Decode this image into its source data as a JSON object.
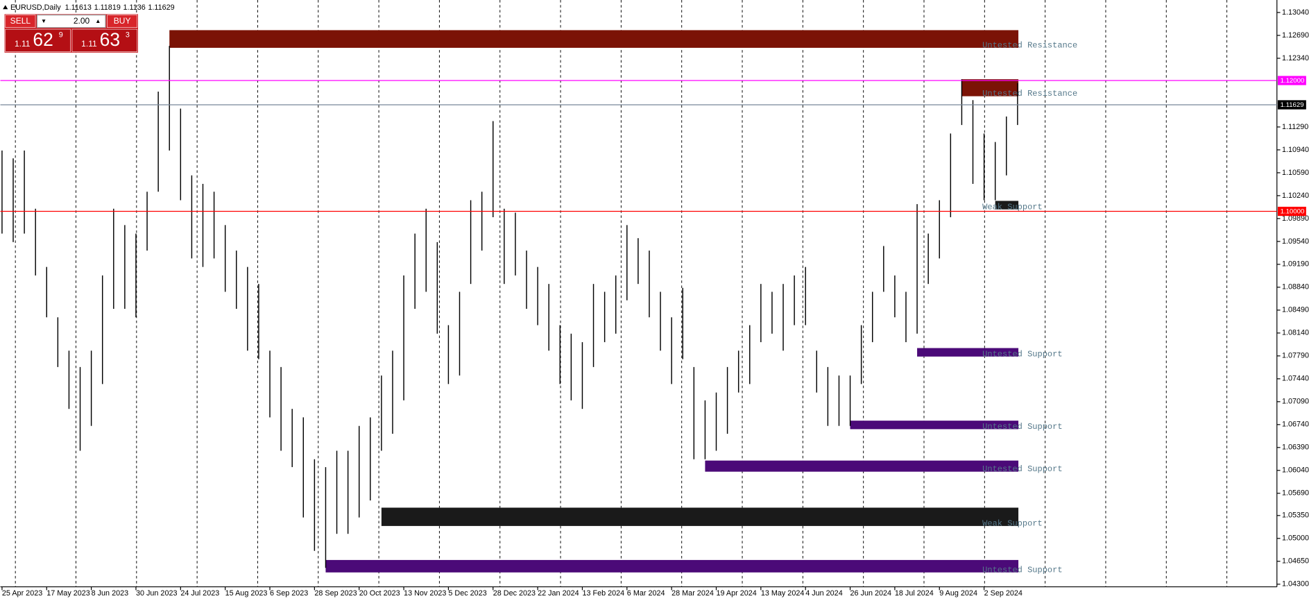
{
  "header": {
    "symbol": "EURUSD,Daily",
    "open": 1.11613,
    "high": 1.11819,
    "low": 1.1136,
    "close": 1.11629
  },
  "trade_panel": {
    "sell_label": "SELL",
    "buy_label": "BUY",
    "lot": "2.00",
    "sell": {
      "figure": "1.11",
      "pips": "62",
      "point": "9"
    },
    "buy": {
      "figure": "1.11",
      "pips": "63",
      "point": "3"
    }
  },
  "chart_data": {
    "type": "hilo",
    "bar_color": "#000000",
    "categories": [
      "25 Apr 2023",
      null,
      null,
      null,
      "17 May 2023",
      null,
      null,
      null,
      "8 Jun 2023",
      null,
      null,
      null,
      "30 Jun 2023",
      null,
      null,
      null,
      "24 Jul 2023",
      null,
      null,
      null,
      "15 Aug 2023",
      null,
      null,
      null,
      "6 Sep 2023",
      null,
      null,
      null,
      "28 Sep 2023",
      null,
      null,
      null,
      "20 Oct 2023",
      null,
      null,
      null,
      "13 Nov 2023",
      null,
      null,
      null,
      "5 Dec 2023",
      null,
      null,
      null,
      "28 Dec 2023",
      null,
      null,
      null,
      "22 Jan 2024",
      null,
      null,
      null,
      "13 Feb 2024",
      null,
      null,
      null,
      "6 Mar 2024",
      null,
      null,
      null,
      "28 Mar 2024",
      null,
      null,
      null,
      "19 Apr 2024",
      null,
      null,
      null,
      "13 May 2024",
      null,
      null,
      null,
      "4 Jun 2024",
      null,
      null,
      null,
      "26 Jun 2024",
      null,
      null,
      null,
      "18 Jul 2024",
      null,
      null,
      null,
      "9 Aug 2024",
      null,
      null,
      null,
      "2 Sep 2024",
      null,
      null,
      null
    ],
    "highs": [
      1.1093,
      1.1081,
      1.1093,
      1.1004,
      1.0915,
      1.0838,
      1.0787,
      1.0762,
      1.0787,
      1.0902,
      1.1004,
      1.0979,
      1.0966,
      1.103,
      1.1183,
      1.1253,
      1.1157,
      1.1055,
      1.1042,
      1.103,
      1.0979,
      1.094,
      1.0915,
      1.0889,
      1.0787,
      1.0762,
      1.0698,
      1.0685,
      1.0621,
      1.0609,
      1.0634,
      1.0634,
      1.0672,
      1.0685,
      1.0749,
      1.0787,
      1.0902,
      1.0966,
      1.1004,
      1.0953,
      1.0826,
      1.0877,
      1.1017,
      1.103,
      1.1138,
      1.1004,
      1.0998,
      1.094,
      1.0915,
      1.0889,
      1.0826,
      1.0813,
      1.08,
      1.0889,
      1.0877,
      1.0902,
      1.0979,
      1.0959,
      1.094,
      1.0877,
      1.0838,
      1.0883,
      1.0762,
      1.0711,
      1.0723,
      1.0762,
      1.0787,
      1.0826,
      1.0889,
      1.0877,
      1.0889,
      1.0902,
      1.0915,
      1.0787,
      1.0762,
      1.0749,
      1.0749,
      1.0826,
      1.0877,
      1.0947,
      1.0902,
      1.0877,
      1.1011,
      1.0966,
      1.1017,
      1.1119,
      1.1202,
      1.117,
      1.1119,
      1.1106,
      1.1145,
      1.1196
    ],
    "lows": [
      1.0966,
      1.0953,
      1.0966,
      1.0902,
      1.0838,
      1.0762,
      1.0698,
      1.0634,
      1.0672,
      1.0736,
      1.0851,
      1.0851,
      1.0838,
      1.094,
      1.103,
      1.1093,
      1.1017,
      1.0928,
      1.0915,
      1.0928,
      1.0877,
      1.0851,
      1.0787,
      1.0774,
      1.0685,
      1.0634,
      1.0609,
      1.0532,
      1.0481,
      1.0455,
      1.0507,
      1.0507,
      1.0532,
      1.0558,
      1.0634,
      1.066,
      1.0711,
      1.0851,
      1.0877,
      1.0813,
      1.0736,
      1.0749,
      1.0889,
      1.094,
      1.0991,
      1.0889,
      1.0902,
      1.0851,
      1.0826,
      1.0787,
      1.0736,
      1.0711,
      1.0698,
      1.0762,
      1.08,
      1.0813,
      1.0864,
      1.0889,
      1.0838,
      1.0787,
      1.0736,
      1.0774,
      1.0621,
      1.0621,
      1.0634,
      1.066,
      1.0723,
      1.0736,
      1.08,
      1.0813,
      1.0787,
      1.0826,
      1.0826,
      1.0723,
      1.0672,
      1.0672,
      1.0672,
      1.0736,
      1.08,
      1.0877,
      1.0838,
      1.08,
      1.0813,
      1.0889,
      1.0928,
      1.0991,
      1.1132,
      1.1042,
      1.1017,
      1.1017,
      1.1055,
      1.1132
    ],
    "ylim": [
      1.0426,
      1.1318
    ],
    "yticks": [
      {
        "value": 1.1304,
        "label": "1.13040"
      },
      {
        "value": 1.1269,
        "label": "1.12690"
      },
      {
        "value": 1.1234,
        "label": "1.12340"
      },
      {
        "value": 1.1129,
        "label": "1.11290"
      },
      {
        "value": 1.1094,
        "label": "1.10940"
      },
      {
        "value": 1.1059,
        "label": "1.10590"
      },
      {
        "value": 1.1024,
        "label": "1.10240"
      },
      {
        "value": 1.0989,
        "label": "1.09890"
      },
      {
        "value": 1.0954,
        "label": "1.09540"
      },
      {
        "value": 1.0919,
        "label": "1.09190"
      },
      {
        "value": 1.0884,
        "label": "1.08840"
      },
      {
        "value": 1.0849,
        "label": "1.08490"
      },
      {
        "value": 1.0814,
        "label": "1.08140"
      },
      {
        "value": 1.0779,
        "label": "1.07790"
      },
      {
        "value": 1.0744,
        "label": "1.07440"
      },
      {
        "value": 1.0709,
        "label": "1.07090"
      },
      {
        "value": 1.0674,
        "label": "1.06740"
      },
      {
        "value": 1.0639,
        "label": "1.06390"
      },
      {
        "value": 1.0604,
        "label": "1.06040"
      },
      {
        "value": 1.0569,
        "label": "1.05690"
      },
      {
        "value": 1.0535,
        "label": "1.05350"
      },
      {
        "value": 1.05,
        "label": "1.05000"
      },
      {
        "value": 1.0465,
        "label": "1.04650"
      },
      {
        "value": 1.043,
        "label": "1.04300"
      }
    ],
    "zones": [
      {
        "label": "Untested Resistance",
        "top": 1.1277,
        "bottom": 1.125,
        "start": 15,
        "color": "#7b1306"
      },
      {
        "label": "Untested Resistance",
        "top": 1.1202,
        "bottom": 1.1176,
        "start": 86,
        "color": "#7b1306"
      },
      {
        "label": "Weak Support",
        "top": 1.1016,
        "bottom": 1.1003,
        "start": 89,
        "color": "#1a1a1a"
      },
      {
        "label": "Untested Support",
        "top": 1.0791,
        "bottom": 1.0778,
        "start": 82,
        "color": "#4b0a78"
      },
      {
        "label": "Untested Support",
        "top": 1.068,
        "bottom": 1.0667,
        "start": 76,
        "color": "#4b0a78"
      },
      {
        "label": "Untested Support",
        "top": 1.0619,
        "bottom": 1.0602,
        "start": 63,
        "color": "#4b0a78"
      },
      {
        "label": "Weak Support",
        "top": 1.0547,
        "bottom": 1.0519,
        "start": 34,
        "color": "#1a1a1a"
      },
      {
        "label": "Untested Support",
        "top": 1.0467,
        "bottom": 1.0448,
        "start": 29,
        "color": "#4b0a78"
      }
    ],
    "hlines": [
      {
        "value": 1.12,
        "label": "1.12000",
        "color": "#ff00ff"
      },
      {
        "value": 1.11629,
        "label": "1.11629",
        "color": "#778899",
        "label_color": "#000000"
      },
      {
        "value": 1.1,
        "label": "1.10000",
        "color": "#ff0000"
      }
    ]
  }
}
